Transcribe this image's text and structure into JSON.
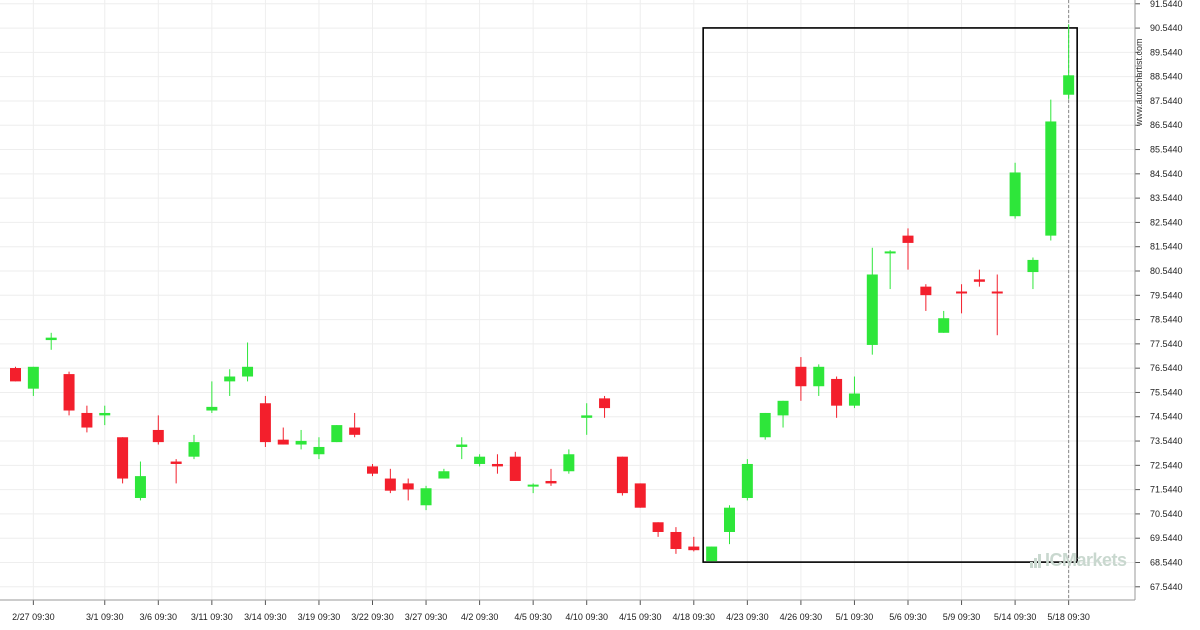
{
  "watermark": "ICMarkets",
  "source": "www.autochartist.com",
  "colors": {
    "up": "#2ee63a",
    "down": "#f31f2c",
    "grid": "#eeeeee",
    "box": "#000000"
  },
  "chart_data": {
    "type": "candlestick",
    "ylim": [
      67.0,
      91.7
    ],
    "yticks": [
      "67.5440",
      "68.5440",
      "69.5440",
      "70.5440",
      "71.5440",
      "72.5440",
      "73.5440",
      "74.5440",
      "75.5440",
      "76.5440",
      "77.5440",
      "78.5440",
      "79.5440",
      "80.5440",
      "81.5440",
      "82.5440",
      "83.5440",
      "84.5440",
      "85.5440",
      "86.5440",
      "87.5440",
      "88.5440",
      "89.5440",
      "90.5440",
      "91.5440"
    ],
    "xticks": [
      {
        "i": 1,
        "label": "2/27 09:30"
      },
      {
        "i": 5,
        "label": "3/1 09:30"
      },
      {
        "i": 8,
        "label": "3/6 09:30"
      },
      {
        "i": 11,
        "label": "3/11 09:30"
      },
      {
        "i": 14,
        "label": "3/14 09:30"
      },
      {
        "i": 17,
        "label": "3/19 09:30"
      },
      {
        "i": 20,
        "label": "3/22 09:30"
      },
      {
        "i": 23,
        "label": "3/27 09:30"
      },
      {
        "i": 26,
        "label": "4/2 09:30"
      },
      {
        "i": 29,
        "label": "4/5 09:30"
      },
      {
        "i": 32,
        "label": "4/10 09:30"
      },
      {
        "i": 35,
        "label": "4/15 09:30"
      },
      {
        "i": 38,
        "label": "4/18 09:30"
      },
      {
        "i": 41,
        "label": "4/23 09:30"
      },
      {
        "i": 44,
        "label": "4/26 09:30"
      },
      {
        "i": 47,
        "label": "5/1 09:30"
      },
      {
        "i": 50,
        "label": "5/6 09:30"
      },
      {
        "i": 53,
        "label": "5/9 09:30"
      },
      {
        "i": 56,
        "label": "5/14 09:30"
      },
      {
        "i": 59,
        "label": "5/18 09:30"
      }
    ],
    "candles": [
      {
        "o": 76.55,
        "h": 76.6,
        "l": 76.0,
        "c": 76.0
      },
      {
        "o": 75.7,
        "h": 76.6,
        "l": 75.4,
        "c": 76.6
      },
      {
        "o": 77.7,
        "h": 78.0,
        "l": 77.3,
        "c": 77.8
      },
      {
        "o": 76.3,
        "h": 76.4,
        "l": 74.6,
        "c": 74.8
      },
      {
        "o": 74.7,
        "h": 75.0,
        "l": 73.9,
        "c": 74.1
      },
      {
        "o": 74.6,
        "h": 75.0,
        "l": 74.2,
        "c": 74.7
      },
      {
        "o": 73.7,
        "h": 73.7,
        "l": 71.8,
        "c": 72.0
      },
      {
        "o": 71.2,
        "h": 72.7,
        "l": 71.1,
        "c": 72.1
      },
      {
        "o": 74.0,
        "h": 74.6,
        "l": 73.4,
        "c": 73.5
      },
      {
        "o": 72.7,
        "h": 72.8,
        "l": 71.8,
        "c": 72.6
      },
      {
        "o": 72.9,
        "h": 73.8,
        "l": 72.8,
        "c": 73.5
      },
      {
        "o": 74.8,
        "h": 76.0,
        "l": 74.7,
        "c": 74.95
      },
      {
        "o": 76.0,
        "h": 76.5,
        "l": 75.4,
        "c": 76.2
      },
      {
        "o": 76.2,
        "h": 77.6,
        "l": 76.0,
        "c": 76.6
      },
      {
        "o": 75.1,
        "h": 75.4,
        "l": 73.3,
        "c": 73.5
      },
      {
        "o": 73.6,
        "h": 74.1,
        "l": 73.4,
        "c": 73.4
      },
      {
        "o": 73.4,
        "h": 74.0,
        "l": 73.2,
        "c": 73.55
      },
      {
        "o": 73.0,
        "h": 73.7,
        "l": 72.8,
        "c": 73.3
      },
      {
        "o": 73.5,
        "h": 74.2,
        "l": 73.5,
        "c": 74.2
      },
      {
        "o": 74.1,
        "h": 74.7,
        "l": 73.7,
        "c": 73.8
      },
      {
        "o": 72.5,
        "h": 72.6,
        "l": 72.1,
        "c": 72.2
      },
      {
        "o": 72.0,
        "h": 72.4,
        "l": 71.4,
        "c": 71.5
      },
      {
        "o": 71.8,
        "h": 72.0,
        "l": 71.1,
        "c": 71.55
      },
      {
        "o": 70.9,
        "h": 71.7,
        "l": 70.7,
        "c": 71.6
      },
      {
        "o": 72.0,
        "h": 72.4,
        "l": 72.0,
        "c": 72.3
      },
      {
        "o": 73.3,
        "h": 73.7,
        "l": 72.8,
        "c": 73.4
      },
      {
        "o": 72.6,
        "h": 73.0,
        "l": 72.5,
        "c": 72.9
      },
      {
        "o": 72.6,
        "h": 73.0,
        "l": 72.2,
        "c": 72.5
      },
      {
        "o": 72.9,
        "h": 73.1,
        "l": 71.9,
        "c": 71.9
      },
      {
        "o": 71.7,
        "h": 71.8,
        "l": 71.4,
        "c": 71.75
      },
      {
        "o": 71.9,
        "h": 72.4,
        "l": 71.7,
        "c": 71.8
      },
      {
        "o": 72.3,
        "h": 73.2,
        "l": 72.2,
        "c": 73.0
      },
      {
        "o": 74.5,
        "h": 75.1,
        "l": 73.8,
        "c": 74.6
      },
      {
        "o": 75.3,
        "h": 75.4,
        "l": 74.5,
        "c": 74.9
      },
      {
        "o": 72.9,
        "h": 72.9,
        "l": 71.3,
        "c": 71.4
      },
      {
        "o": 71.8,
        "h": 71.8,
        "l": 70.8,
        "c": 70.8
      },
      {
        "o": 70.2,
        "h": 70.2,
        "l": 69.6,
        "c": 69.8
      },
      {
        "o": 69.8,
        "h": 70.0,
        "l": 68.9,
        "c": 69.1
      },
      {
        "o": 69.2,
        "h": 69.6,
        "l": 69.0,
        "c": 69.05
      },
      {
        "o": 68.6,
        "h": 69.2,
        "l": 68.6,
        "c": 69.2
      },
      {
        "o": 69.8,
        "h": 70.9,
        "l": 69.3,
        "c": 70.8
      },
      {
        "o": 71.2,
        "h": 72.8,
        "l": 71.1,
        "c": 72.6
      },
      {
        "o": 73.7,
        "h": 74.7,
        "l": 73.6,
        "c": 74.7
      },
      {
        "o": 74.6,
        "h": 75.2,
        "l": 74.1,
        "c": 75.2
      },
      {
        "o": 76.6,
        "h": 77.0,
        "l": 75.2,
        "c": 75.8
      },
      {
        "o": 75.8,
        "h": 76.7,
        "l": 75.4,
        "c": 76.6
      },
      {
        "o": 76.1,
        "h": 76.2,
        "l": 74.5,
        "c": 75.0
      },
      {
        "o": 75.0,
        "h": 76.2,
        "l": 74.9,
        "c": 75.5
      },
      {
        "o": 77.5,
        "h": 81.5,
        "l": 77.1,
        "c": 80.4
      },
      {
        "o": 81.3,
        "h": 81.4,
        "l": 79.8,
        "c": 81.35
      },
      {
        "o": 82.0,
        "h": 82.3,
        "l": 80.6,
        "c": 81.7
      },
      {
        "o": 79.9,
        "h": 80.0,
        "l": 78.9,
        "c": 79.55
      },
      {
        "o": 78.0,
        "h": 78.9,
        "l": 78.0,
        "c": 78.6
      },
      {
        "o": 79.7,
        "h": 80.0,
        "l": 78.8,
        "c": 79.65
      },
      {
        "o": 80.2,
        "h": 80.6,
        "l": 79.9,
        "c": 80.1
      },
      {
        "o": 79.7,
        "h": 80.4,
        "l": 77.9,
        "c": 79.65
      },
      {
        "o": 82.8,
        "h": 85.0,
        "l": 82.7,
        "c": 84.6
      },
      {
        "o": 80.5,
        "h": 81.1,
        "l": 79.8,
        "c": 81.0
      },
      {
        "o": 82.0,
        "h": 87.6,
        "l": 81.8,
        "c": 86.7
      },
      {
        "o": 87.8,
        "h": 90.7,
        "l": 87.6,
        "c": 88.6
      }
    ],
    "highlight": {
      "from_index": 39,
      "to_index": 59,
      "low": 68.56,
      "high": 90.55
    },
    "current_index": 59
  }
}
